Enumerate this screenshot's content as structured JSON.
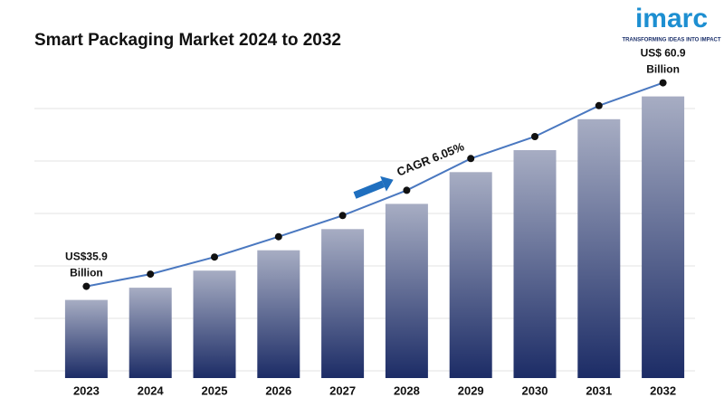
{
  "chart_data": {
    "type": "bar",
    "title": "Smart Packaging Market 2024 to 2032",
    "categories": [
      "2023",
      "2024",
      "2025",
      "2026",
      "2027",
      "2028",
      "2029",
      "2030",
      "2031",
      "2032"
    ],
    "values": [
      35.9,
      37.4,
      39.5,
      42.0,
      44.6,
      47.7,
      51.6,
      54.3,
      58.1,
      60.9
    ],
    "value_labels": [
      "US$35.9 Billion",
      null,
      null,
      null,
      null,
      null,
      null,
      null,
      null,
      "US$ 60.9 Billion"
    ],
    "color": "#1c2c66",
    "line_color": "#4a78c0",
    "ylim": [
      26.3,
      66
    ],
    "annotation": "CAGR 6.05%"
  },
  "logo": {
    "name": "imarc",
    "tagline": "TRANSFORMING IDEAS INTO IMPACT"
  }
}
